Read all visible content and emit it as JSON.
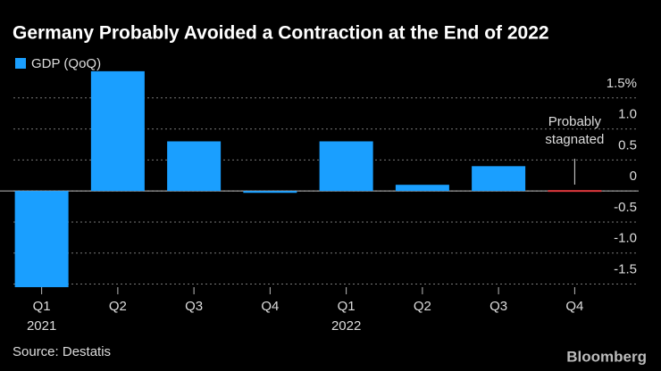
{
  "chart_data": {
    "type": "bar",
    "title": "Germany Probably Avoided a Contraction at the End of 2022",
    "legend": "GDP (QoQ)",
    "categories": [
      "Q1",
      "Q2",
      "Q3",
      "Q4",
      "Q1",
      "Q2",
      "Q3",
      "Q4"
    ],
    "groups": [
      "2021",
      null,
      null,
      null,
      "2022",
      null,
      null,
      null
    ],
    "values": [
      -1.55,
      1.93,
      0.8,
      -0.03,
      0.8,
      0.1,
      0.4,
      0
    ],
    "colors": [
      "#1a9fff",
      "#1a9fff",
      "#1a9fff",
      "#1a9fff",
      "#1a9fff",
      "#1a9fff",
      "#1a9fff",
      "#e0393e"
    ],
    "ylim": [
      -1.55,
      2.0
    ],
    "yticks": [
      {
        "value": 1.5,
        "label": "1.5%"
      },
      {
        "value": 1.0,
        "label": "1.0"
      },
      0.5,
      0,
      -0.5,
      {
        "value": -1.0,
        "label": "-1.0"
      },
      -1.5
    ],
    "grid": true,
    "annotation": [
      "Probably",
      "stagnated"
    ],
    "source": "Source: Destatis",
    "brand": "Bloomberg"
  }
}
